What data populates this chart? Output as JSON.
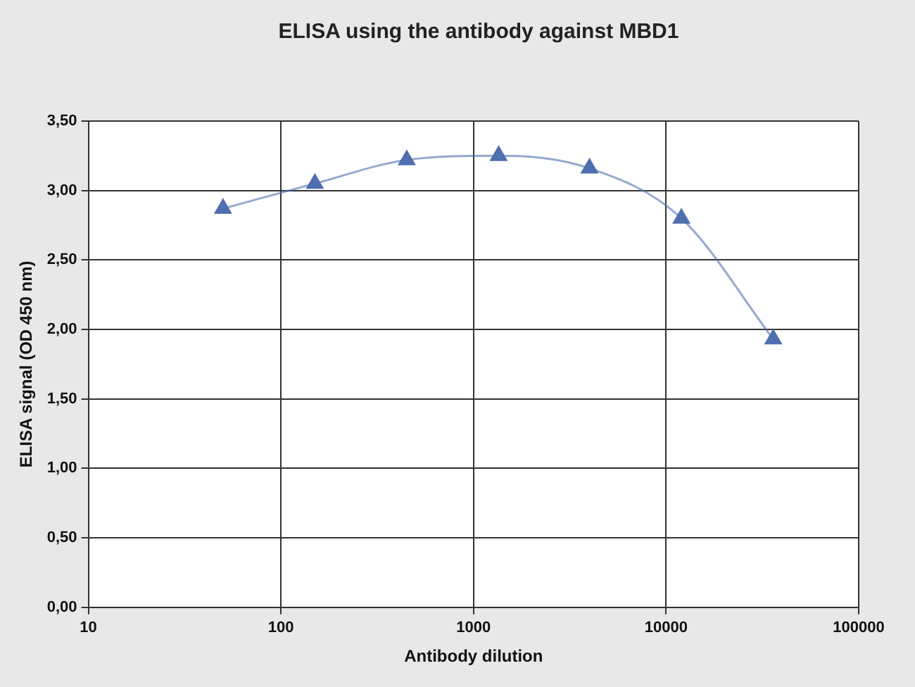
{
  "chart_data": {
    "type": "line",
    "title": "ELISA using the antibody against MBD1",
    "xlabel": "Antibody dilution",
    "ylabel": "ELISA signal (OD 450 nm)",
    "x": [
      50,
      150,
      450,
      1350,
      4000,
      12000,
      36000
    ],
    "series": [
      {
        "color": "#4f6fae",
        "values": [
          2.87,
          3.05,
          3.22,
          3.25,
          3.16,
          2.8,
          1.93
        ]
      }
    ],
    "log": "x",
    "xlim": [
      10,
      100000
    ],
    "xticks": [
      10,
      100,
      1000,
      10000,
      100000
    ],
    "ylim": [
      0,
      3.5
    ],
    "yticks": [
      {
        "value": 0,
        "label": "0,00"
      },
      {
        "value": 0.5,
        "label": "0,50"
      },
      {
        "value": 1,
        "label": "1,00"
      },
      {
        "value": 1.5,
        "label": "1,50"
      },
      {
        "value": 2,
        "label": "2,00"
      },
      {
        "value": 2.5,
        "label": "2,50"
      },
      {
        "value": 3,
        "label": "3,00"
      },
      {
        "value": 3.5,
        "label": "3,50"
      }
    ],
    "grid": true,
    "marker": "triangle",
    "line_style": "solid",
    "legend": false
  }
}
